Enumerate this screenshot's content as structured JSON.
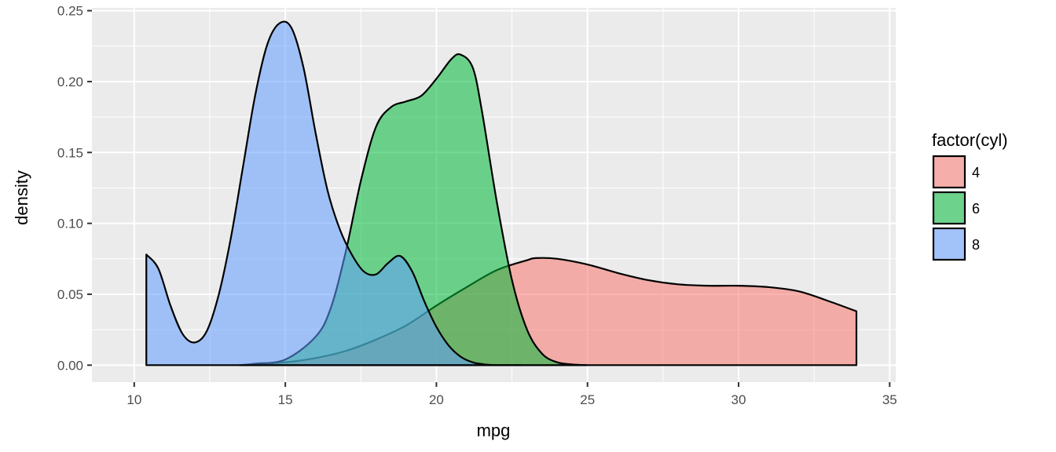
{
  "chart_data": {
    "type": "area",
    "xlabel": "mpg",
    "ylabel": "density",
    "xlim": [
      8.6,
      35.2
    ],
    "ylim": [
      -0.012,
      0.252
    ],
    "x_ticks": [
      10,
      15,
      20,
      25,
      30,
      35
    ],
    "x_tick_labels": [
      "10",
      "15",
      "20",
      "25",
      "30",
      "35"
    ],
    "y_ticks": [
      0,
      0.05,
      0.1,
      0.15,
      0.2,
      0.25
    ],
    "y_tick_labels": [
      "0.00",
      "0.05",
      "0.10",
      "0.15",
      "0.20",
      "0.25"
    ],
    "grid": true,
    "legend": {
      "title": "factor(cyl)",
      "position": "right",
      "entries": [
        "4",
        "6",
        "8"
      ]
    },
    "series": [
      {
        "name": "4",
        "color": "#F8766D",
        "x": [
          13.5,
          15,
          16,
          17,
          18,
          19,
          20,
          21,
          22,
          23,
          23.3,
          24,
          25,
          26,
          27,
          28,
          29,
          30,
          31,
          32,
          33,
          33.9
        ],
        "y": [
          0.0,
          0.002,
          0.005,
          0.01,
          0.018,
          0.028,
          0.042,
          0.055,
          0.067,
          0.074,
          0.0755,
          0.075,
          0.071,
          0.065,
          0.06,
          0.057,
          0.056,
          0.056,
          0.055,
          0.052,
          0.045,
          0.038
        ]
      },
      {
        "name": "6",
        "color": "#00BA38",
        "x": [
          13.5,
          14,
          15,
          16,
          16.5,
          17,
          17.5,
          18,
          18.5,
          19,
          19.5,
          20,
          20.5,
          20.8,
          21.2,
          21.5,
          22,
          22.5,
          23,
          23.5,
          24,
          24.5,
          25
        ],
        "y": [
          0.0,
          0.001,
          0.004,
          0.02,
          0.04,
          0.08,
          0.13,
          0.168,
          0.182,
          0.186,
          0.19,
          0.202,
          0.216,
          0.219,
          0.21,
          0.18,
          0.115,
          0.06,
          0.025,
          0.008,
          0.002,
          0.0005,
          0.0
        ]
      },
      {
        "name": "8",
        "color": "#619CFF",
        "x": [
          10.4,
          10.8,
          11.2,
          11.6,
          12.0,
          12.4,
          12.8,
          13.2,
          13.6,
          14.0,
          14.4,
          14.8,
          15.2,
          15.6,
          16.0,
          16.4,
          16.8,
          17.2,
          17.6,
          18.0,
          18.4,
          18.8,
          19.2,
          19.6,
          20.0,
          20.4,
          20.8,
          21.2,
          21.6,
          22.0,
          22.4,
          22.8
        ],
        "y": [
          0.078,
          0.068,
          0.042,
          0.022,
          0.016,
          0.024,
          0.05,
          0.09,
          0.14,
          0.19,
          0.226,
          0.241,
          0.238,
          0.21,
          0.164,
          0.123,
          0.096,
          0.078,
          0.066,
          0.064,
          0.072,
          0.077,
          0.066,
          0.045,
          0.027,
          0.014,
          0.006,
          0.002,
          0.0005,
          0.0,
          0.0,
          0.0
        ]
      }
    ]
  }
}
